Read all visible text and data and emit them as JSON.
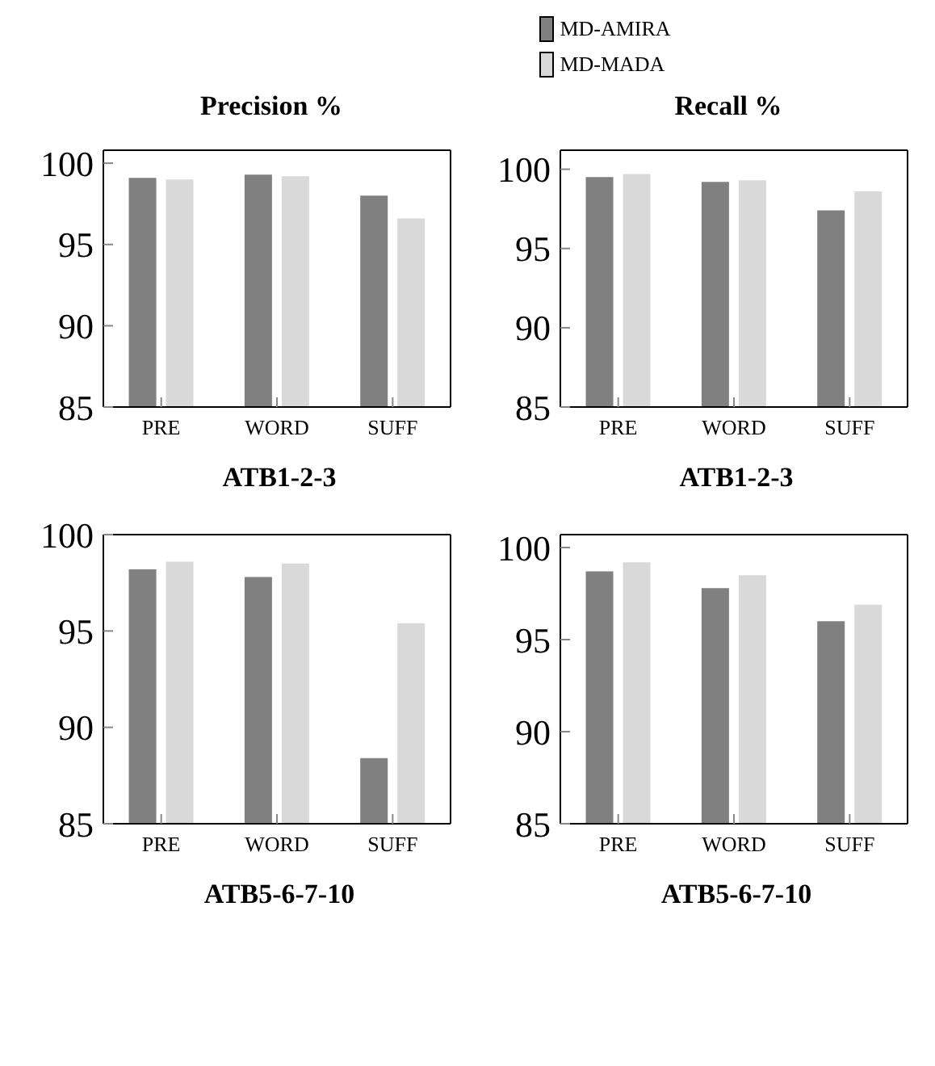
{
  "chart_data": [
    {
      "type": "bar",
      "title": "Precision %",
      "xlabel": "ATB1-2-3",
      "categories": [
        "PRE",
        "WORD",
        "SUFF"
      ],
      "series": [
        {
          "name": "MD-AMIRA",
          "color": "#808080",
          "values": [
            99.1,
            99.3,
            98.0
          ]
        },
        {
          "name": "MD-MADA",
          "color": "#d9d9d9",
          "values": [
            99.0,
            99.2,
            96.6
          ]
        }
      ],
      "ylim": [
        85,
        100.8
      ],
      "yticks": [
        85,
        90,
        95,
        100
      ],
      "grid": false,
      "legend": "top"
    },
    {
      "type": "bar",
      "title": "Recall %",
      "xlabel": "ATB1-2-3",
      "categories": [
        "PRE",
        "WORD",
        "SUFF"
      ],
      "series": [
        {
          "color": "#808080",
          "values": [
            99.5,
            99.2,
            97.4
          ]
        },
        {
          "color": "#d9d9d9",
          "values": [
            99.7,
            99.3,
            98.6
          ]
        }
      ],
      "ylim": [
        85,
        101.2
      ],
      "yticks": [
        85,
        90,
        95,
        100
      ],
      "grid": false
    },
    {
      "type": "bar",
      "xlabel": "ATB5-6-7-10",
      "categories": [
        "PRE",
        "WORD",
        "SUFF"
      ],
      "series": [
        {
          "color": "#808080",
          "values": [
            98.2,
            97.8,
            88.4
          ]
        },
        {
          "color": "#d9d9d9",
          "values": [
            98.6,
            98.5,
            95.4
          ]
        }
      ],
      "ylim": [
        85,
        100
      ],
      "yticks": [
        85,
        90,
        95,
        100
      ],
      "grid": false
    },
    {
      "type": "bar",
      "xlabel": "ATB5-6-7-10",
      "categories": [
        "PRE",
        "WORD",
        "SUFF"
      ],
      "series": [
        {
          "color": "#808080",
          "values": [
            98.7,
            97.8,
            96.0
          ]
        },
        {
          "color": "#d9d9d9",
          "values": [
            99.2,
            98.5,
            96.9
          ]
        }
      ],
      "ylim": [
        85,
        100.7
      ],
      "yticks": [
        85,
        90,
        95,
        100
      ],
      "grid": false
    }
  ]
}
